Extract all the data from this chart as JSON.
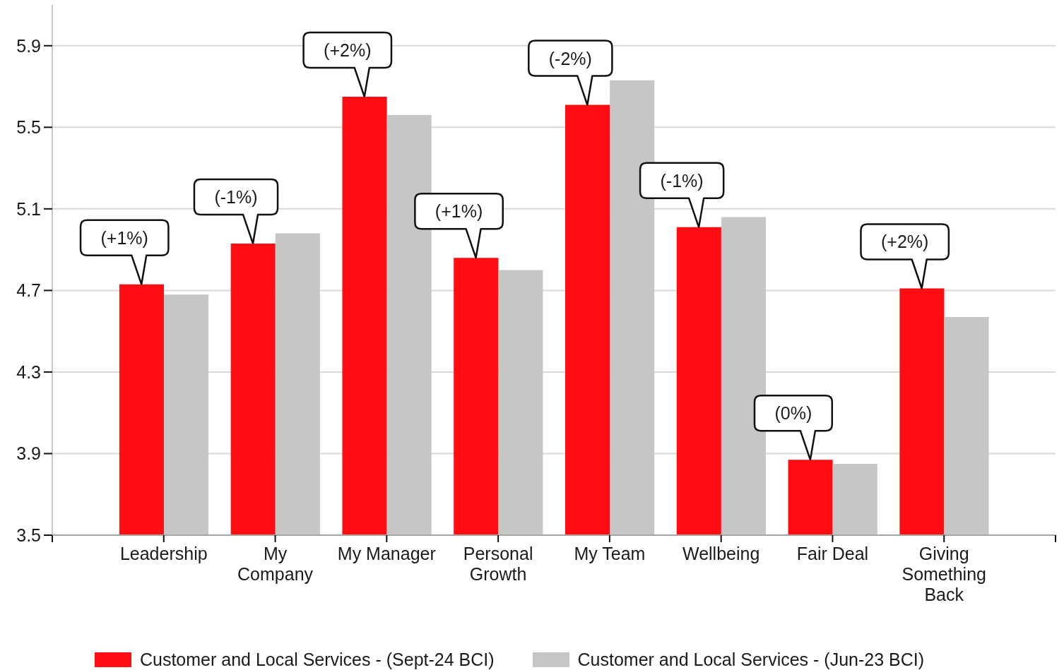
{
  "chart_data": {
    "type": "bar",
    "categories": [
      "Leadership",
      "My Company",
      "My Manager",
      "Personal Growth",
      "My Team",
      "Wellbeing",
      "Fair Deal",
      "Giving Something Back"
    ],
    "series": [
      {
        "name": "Customer and Local Services - (Sept-24 BCI)",
        "color": "#ff0d13",
        "values": [
          4.73,
          4.93,
          5.65,
          4.86,
          5.61,
          5.01,
          3.87,
          4.71
        ]
      },
      {
        "name": "Customer and Local Services - (Jun-23 BCI)",
        "color": "#c6c6c6",
        "values": [
          4.68,
          4.98,
          5.56,
          4.8,
          5.73,
          5.06,
          3.85,
          4.57
        ]
      }
    ],
    "ylim": [
      3.5,
      6.1
    ],
    "yticks": [
      3.5,
      3.9,
      4.3,
      4.7,
      5.1,
      5.5,
      5.9
    ],
    "grid": "y",
    "legend": "bottom",
    "annotations": [
      {
        "text": "(+1%)",
        "x": "Leadership",
        "y": 4.73
      },
      {
        "text": "(-1%)",
        "x": "My Company",
        "y": 4.93
      },
      {
        "text": "(+2%)",
        "x": "My Manager",
        "y": 5.65
      },
      {
        "text": "(+1%)",
        "x": "Personal Growth",
        "y": 4.86
      },
      {
        "text": "(-2%)",
        "x": "My Team",
        "y": 5.61
      },
      {
        "text": "(-1%)",
        "x": "Wellbeing",
        "y": 5.01
      },
      {
        "text": "(0%)",
        "x": "Fair Deal",
        "y": 3.87
      },
      {
        "text": "(+2%)",
        "x": "Giving Something Back",
        "y": 4.71
      }
    ]
  }
}
